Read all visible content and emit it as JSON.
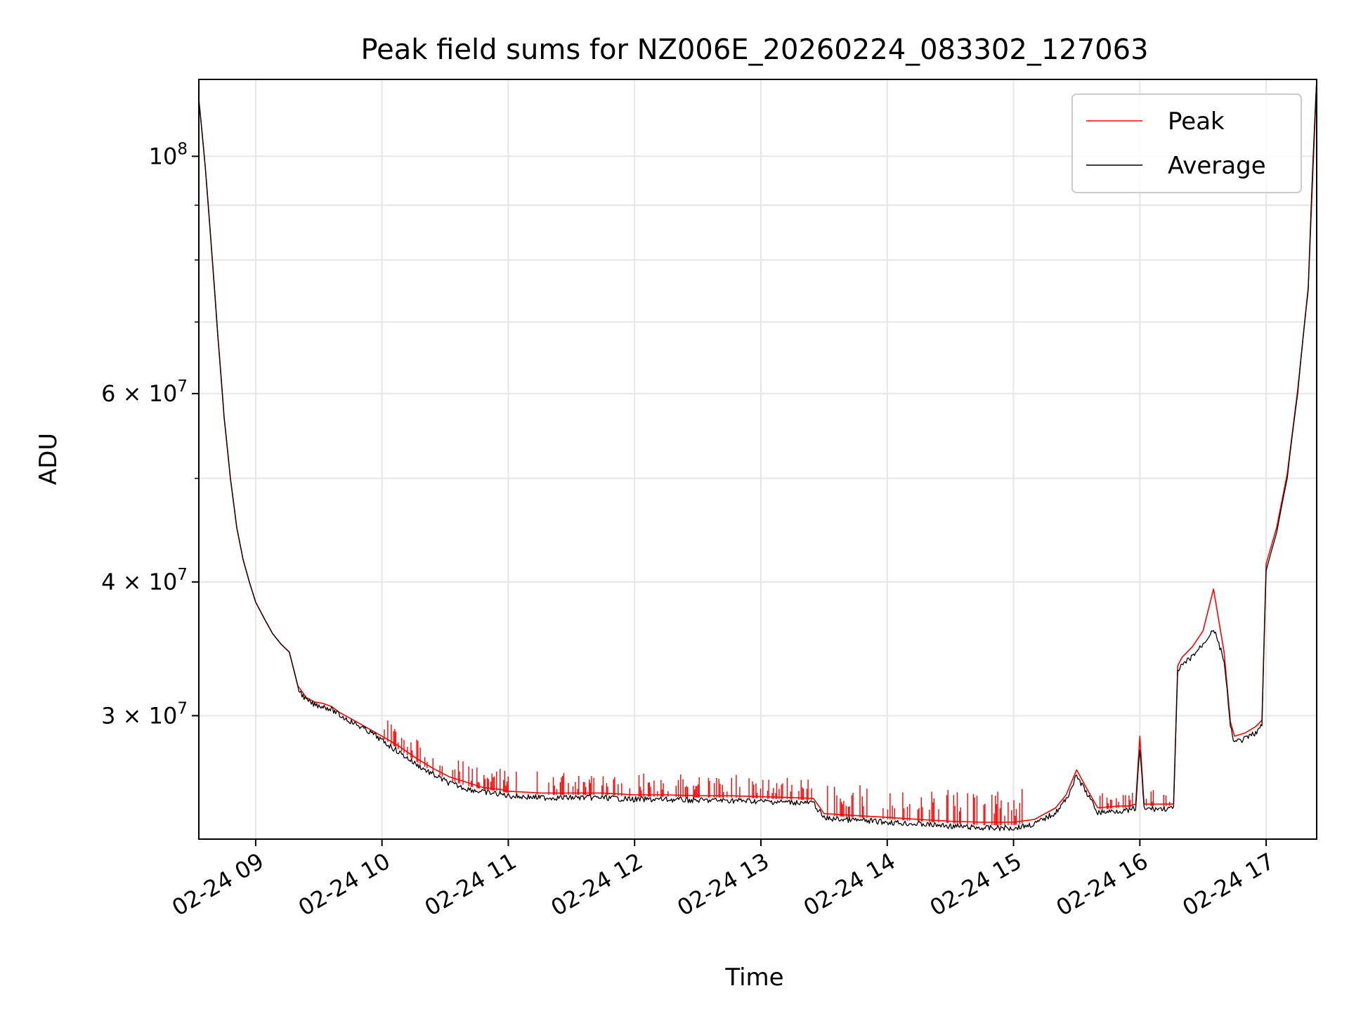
{
  "chart_data": {
    "type": "line",
    "title": "Peak field sums for NZ006E_20260224_083302_127063",
    "xlabel": "Time",
    "ylabel": "ADU",
    "y_scale": "log",
    "grid": true,
    "legend_position": "upper right",
    "xlim": [
      "2026-02-24 08:33",
      "2026-02-24 17:24"
    ],
    "ylim": [
      23000000,
      118000000
    ],
    "x_ticks": [
      "2026-02-24 09:00",
      "2026-02-24 10:00",
      "2026-02-24 11:00",
      "2026-02-24 12:00",
      "2026-02-24 13:00",
      "2026-02-24 14:00",
      "2026-02-24 15:00",
      "2026-02-24 16:00",
      "2026-02-24 17:00"
    ],
    "x_tick_labels": [
      "02-24 09",
      "02-24 10",
      "02-24 11",
      "02-24 12",
      "02-24 13",
      "02-24 14",
      "02-24 15",
      "02-24 16",
      "02-24 17"
    ],
    "y_ticks": [
      {
        "value": 100000000,
        "base": "10",
        "exp": "8",
        "coef": ""
      },
      {
        "value": 60000000,
        "base": "10",
        "exp": "7",
        "coef": "6 × "
      },
      {
        "value": 40000000,
        "base": "10",
        "exp": "7",
        "coef": "4 × "
      },
      {
        "value": 30000000,
        "base": "10",
        "exp": "7",
        "coef": "3 × "
      }
    ],
    "y_minor_ticks": [
      50000000,
      70000000,
      80000000,
      90000000
    ],
    "series": [
      {
        "name": "Peak",
        "color": "#ff0000"
      },
      {
        "name": "Average",
        "color": "#000000"
      }
    ],
    "x": [
      "08:33",
      "08:36",
      "08:39",
      "08:42",
      "08:45",
      "08:48",
      "08:51",
      "08:54",
      "08:57",
      "09:00",
      "09:04",
      "09:08",
      "09:12",
      "09:16",
      "09:20",
      "09:24",
      "09:28",
      "09:32",
      "09:36",
      "09:40",
      "09:44",
      "09:48",
      "09:52",
      "09:56",
      "10:00",
      "10:08",
      "10:16",
      "10:24",
      "10:32",
      "10:40",
      "10:48",
      "10:56",
      "11:00",
      "11:15",
      "11:30",
      "11:45",
      "12:00",
      "12:15",
      "12:30",
      "12:45",
      "13:00",
      "13:15",
      "13:25",
      "13:30",
      "13:45",
      "14:00",
      "14:15",
      "14:30",
      "14:45",
      "15:00",
      "15:10",
      "15:20",
      "15:25",
      "15:30",
      "15:35",
      "15:40",
      "15:50",
      "15:55",
      "15:58",
      "16:00",
      "16:02",
      "16:10",
      "16:16",
      "16:18",
      "16:20",
      "16:25",
      "16:30",
      "16:35",
      "16:40",
      "16:43",
      "16:45",
      "16:50",
      "16:55",
      "16:58",
      "17:00",
      "17:05",
      "17:10",
      "17:15",
      "17:20",
      "17:24"
    ],
    "y_average": [
      113000000,
      98000000,
      82000000,
      68000000,
      57000000,
      50000000,
      45000000,
      42000000,
      40000000,
      38300000,
      37000000,
      35800000,
      35000000,
      34400000,
      32000000,
      31200000,
      30900000,
      30800000,
      30600000,
      30200000,
      29900000,
      29600000,
      29300000,
      29000000,
      28600000,
      27900000,
      27200000,
      26600000,
      26100000,
      25800000,
      25600000,
      25500000,
      25400000,
      25300000,
      25300000,
      25300000,
      25200000,
      25200000,
      25150000,
      25150000,
      25100000,
      25050000,
      25000000,
      24200000,
      24100000,
      24000000,
      23900000,
      23800000,
      23700000,
      23700000,
      23900000,
      24500000,
      25200000,
      26500000,
      25500000,
      24500000,
      24600000,
      24600000,
      24700000,
      28100000,
      24700000,
      24700000,
      24700000,
      33100000,
      33600000,
      34300000,
      35200000,
      36400000,
      34000000,
      29400000,
      28500000,
      28700000,
      29100000,
      29500000,
      41000000,
      44500000,
      50000000,
      60000000,
      75000000,
      118000000
    ],
    "y_peak": [
      113000000,
      98000000,
      82000000,
      68000000,
      57000000,
      50000000,
      45000000,
      42000000,
      40000000,
      38300000,
      37000000,
      35800000,
      35000000,
      34400000,
      32000000,
      31200000,
      30900000,
      30800000,
      30600000,
      30200000,
      29900000,
      29600000,
      29300000,
      29000000,
      28700000,
      28100000,
      27400000,
      26800000,
      26300000,
      26000000,
      25700000,
      25600000,
      25500000,
      25400000,
      25400000,
      25400000,
      25300000,
      25300000,
      25250000,
      25250000,
      25200000,
      25150000,
      25100000,
      24300000,
      24200000,
      24100000,
      24000000,
      23900000,
      23850000,
      23850000,
      24000000,
      24600000,
      25300000,
      26700000,
      25600000,
      24600000,
      24700000,
      24700000,
      24800000,
      28700000,
      24800000,
      24800000,
      24800000,
      33400000,
      34000000,
      34800000,
      36000000,
      39400000,
      34400000,
      29600000,
      28700000,
      28900000,
      29300000,
      29700000,
      41600000,
      45000000,
      50500000,
      60500000,
      75500000,
      118000000
    ],
    "peak_noise_band": [
      {
        "from": "10:00",
        "to": "13:25",
        "spike_pct": 4
      },
      {
        "from": "13:30",
        "to": "15:05",
        "spike_pct": 6
      },
      {
        "from": "15:40",
        "to": "16:15",
        "spike_pct": 3
      }
    ]
  }
}
